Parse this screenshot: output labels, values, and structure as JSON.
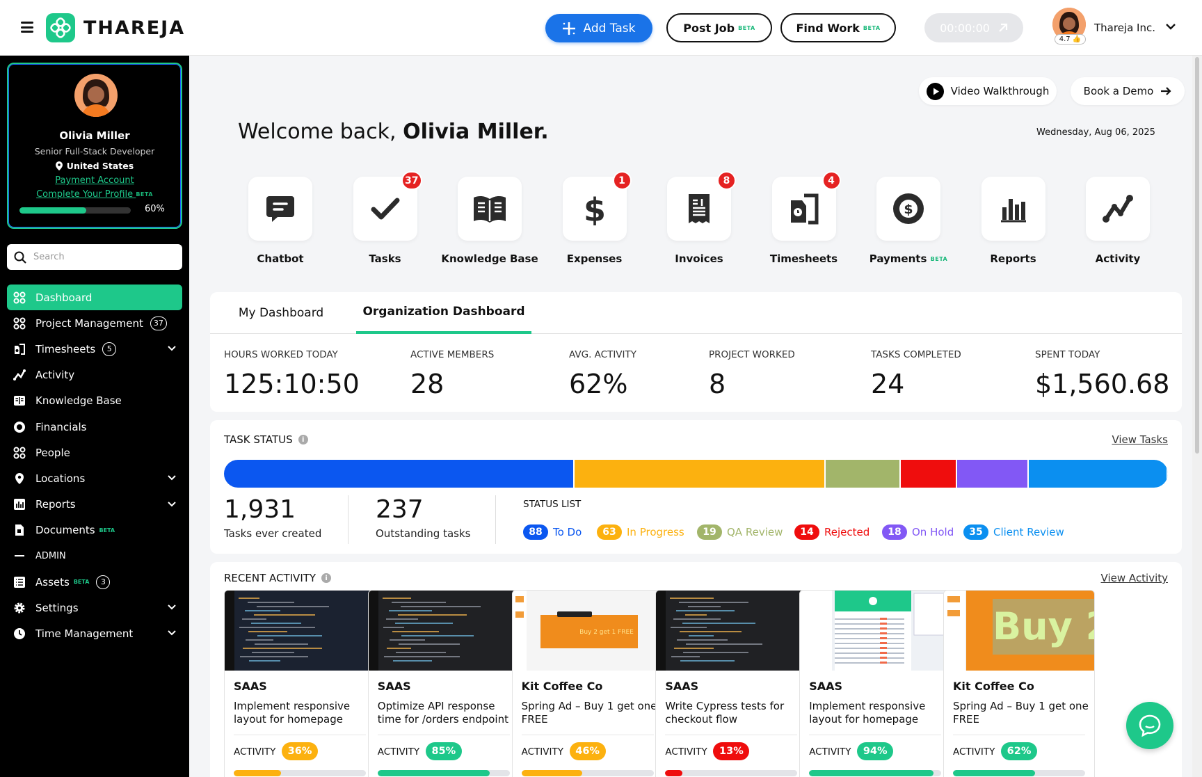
{
  "brand": {
    "name": "THAREJA",
    "color": "#1ec88a"
  },
  "header": {
    "add_task": "Add Task",
    "post_job": "Post Job",
    "find_work": "Find Work",
    "beta": "BETA",
    "timer": "00:00:00",
    "rating": "4.7 👍",
    "org_name": "Thareja Inc."
  },
  "profile": {
    "name": "Olivia Miller",
    "title": "Senior Full-Stack Developer",
    "location": "United States",
    "payment_link": "Payment Account",
    "complete_link": "Complete Your Profile",
    "complete_beta": "BETA",
    "progress_value": 60,
    "progress_text": "60%"
  },
  "search": {
    "placeholder": "Search"
  },
  "nav": {
    "items": [
      {
        "label": "Dashboard",
        "icon": "grid-icon",
        "active": true
      },
      {
        "label": "Project Management",
        "icon": "grid-icon",
        "count": "37"
      },
      {
        "label": "Timesheets",
        "icon": "timesheet-icon",
        "count": "5",
        "chevron": true
      },
      {
        "label": "Activity",
        "icon": "activity-icon"
      },
      {
        "label": "Knowledge Base",
        "icon": "book-icon"
      },
      {
        "label": "Financials",
        "icon": "dollar-icon"
      },
      {
        "label": "People",
        "icon": "people-icon"
      },
      {
        "label": "Locations",
        "icon": "location-icon",
        "chevron": true
      },
      {
        "label": "Reports",
        "icon": "reports-icon",
        "chevron": true
      },
      {
        "label": "Documents",
        "icon": "document-icon",
        "beta": "BETA"
      },
      {
        "label": "ADMIN",
        "icon": "dash-icon",
        "admin": true
      },
      {
        "label": "Assets",
        "icon": "list-icon",
        "beta": "BETA",
        "count": "3"
      },
      {
        "label": "Settings",
        "icon": "gear-icon",
        "chevron": true
      },
      {
        "label": "Time Management",
        "icon": "clock-icon",
        "chevron": true
      }
    ]
  },
  "top_links": {
    "video": "Video Walkthrough",
    "demo": "Book a Demo"
  },
  "welcome": {
    "prefix": "Welcome back,",
    "name": "Olivia Miller.",
    "date": "Wednesday, Aug 06, 2025"
  },
  "shortcuts": [
    {
      "label": "Chatbot",
      "icon": "chatbot-icon",
      "badge": ""
    },
    {
      "label": "Tasks",
      "icon": "check-icon",
      "badge": "37"
    },
    {
      "label": "Knowledge Base",
      "icon": "book-icon",
      "badge": ""
    },
    {
      "label": "Expenses",
      "icon": "dollar-sign-icon",
      "badge": "1"
    },
    {
      "label": "Invoices",
      "icon": "invoice-icon",
      "badge": "8"
    },
    {
      "label": "Timesheets",
      "icon": "timesheet-icon",
      "badge": "4"
    },
    {
      "label": "Payments",
      "icon": "coin-icon",
      "badge": "",
      "beta": "BETA"
    },
    {
      "label": "Reports",
      "icon": "bar-chart-icon",
      "badge": ""
    },
    {
      "label": "Activity",
      "icon": "activity-icon",
      "badge": ""
    }
  ],
  "dashboard": {
    "tabs": [
      "My Dashboard",
      "Organization Dashboard"
    ],
    "active_tab": 1,
    "stats": [
      {
        "label": "HOURS WORKED TODAY",
        "value": "125:10:50"
      },
      {
        "label": "ACTIVE MEMBERS",
        "value": "28"
      },
      {
        "label": "AVG. ACTIVITY",
        "value": "62%"
      },
      {
        "label": "PROJECT WORKED",
        "value": "8"
      },
      {
        "label": "TASKS COMPLETED",
        "value": "24"
      },
      {
        "label": "SPENT TODAY",
        "value": "$1,560.68"
      }
    ]
  },
  "task_status": {
    "title": "TASK STATUS",
    "view_link": "View Tasks",
    "total": "1,931",
    "total_label": "Tasks ever created",
    "outstanding": "237",
    "outstanding_label": "Outstanding tasks",
    "list_title": "STATUS LIST",
    "statuses": [
      {
        "label": "To Do",
        "count": 88,
        "color": "#0b57f0"
      },
      {
        "label": "In Progress",
        "count": 63,
        "color": "#fcb10f"
      },
      {
        "label": "QA Review",
        "count": 19,
        "color": "#a2b56a"
      },
      {
        "label": "Rejected",
        "count": 14,
        "color": "#ef0d0d"
      },
      {
        "label": "On Hold",
        "count": 18,
        "color": "#8258f5"
      },
      {
        "label": "Client Review",
        "count": 35,
        "color": "#0b8ff0"
      }
    ]
  },
  "recent_activity": {
    "title": "RECENT ACTIVITY",
    "view_link": "View Activity",
    "activity_label": "ACTIVITY",
    "items": [
      {
        "client": "SAAS",
        "task": "Implement responsive layout for homepage",
        "pct": 36,
        "pct_text": "36%",
        "level": "medium",
        "thumb": "code"
      },
      {
        "client": "SAAS",
        "task": "Optimize API response time for /orders endpoint",
        "pct": 85,
        "pct_text": "85%",
        "level": "high",
        "thumb": "code-dark"
      },
      {
        "client": "Kit Coffee Co",
        "task": "Spring Ad – Buy 1 get one FREE",
        "pct": 46,
        "pct_text": "46%",
        "level": "medium",
        "thumb": "ad-small",
        "ad_text": "Buy 2 get 1 FREE"
      },
      {
        "client": "SAAS",
        "task": "Write Cypress tests for checkout flow",
        "pct": 13,
        "pct_text": "13%",
        "level": "low",
        "thumb": "code-dark"
      },
      {
        "client": "SAAS",
        "task": "Implement responsive layout for homepage",
        "pct": 94,
        "pct_text": "94%",
        "level": "high",
        "thumb": "app"
      },
      {
        "client": "Kit Coffee Co",
        "task": "Spring Ad – Buy 1 get one FREE",
        "pct": 62,
        "pct_text": "62%",
        "level": "high",
        "thumb": "ad-big",
        "ad_text": "Buy 2"
      }
    ],
    "level_colors": {
      "low": "#ef0d0d",
      "medium": "#fcb10f",
      "high": "#1ec88a"
    }
  }
}
